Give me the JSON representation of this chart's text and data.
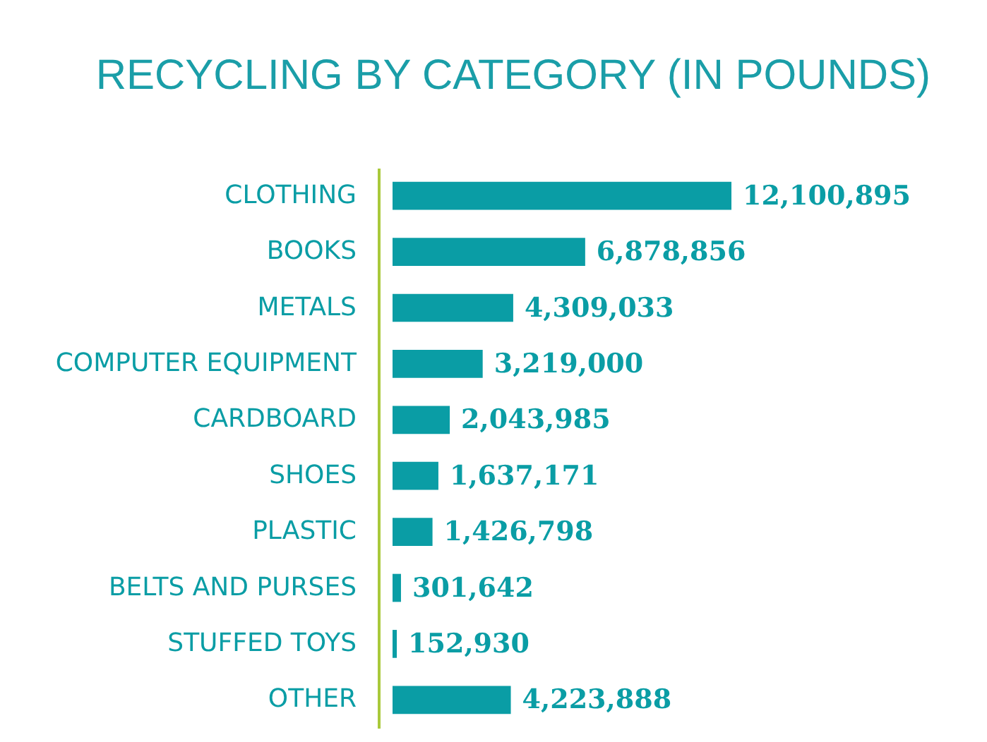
{
  "chart_data": {
    "type": "bar",
    "orientation": "horizontal",
    "title": "RECYCLING BY CATEGORY (IN POUNDS)",
    "categories": [
      "CLOTHING",
      "BOOKS",
      "METALS",
      "COMPUTER EQUIPMENT",
      "CARDBOARD",
      "SHOES",
      "PLASTIC",
      "BELTS AND PURSES",
      "STUFFED TOYS",
      "OTHER"
    ],
    "values": [
      12100895,
      6878856,
      4309033,
      3219000,
      2043985,
      1637171,
      1426798,
      301642,
      152930,
      4223888
    ],
    "value_labels": [
      "12,100,895",
      "6,878,856",
      "4,309,033",
      "3,219,000",
      "2,043,985",
      "1,637,171",
      "1,426,798",
      "301,642",
      "152,930",
      "4,223,888"
    ],
    "color": "#0a9da5",
    "tick_labels": "y"
  }
}
